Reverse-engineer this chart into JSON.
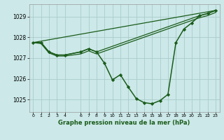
{
  "background_color": "#cce8e8",
  "grid_color": "#aacccc",
  "line_color": "#1a5c1a",
  "title": "Graphe pression niveau de la mer (hPa)",
  "xlim": [
    -0.5,
    23.5
  ],
  "ylim": [
    1024.4,
    1029.6
  ],
  "yticks": [
    1025,
    1026,
    1027,
    1028,
    1029
  ],
  "xticks": [
    0,
    1,
    2,
    3,
    4,
    6,
    7,
    8,
    9,
    10,
    11,
    12,
    13,
    14,
    15,
    16,
    17,
    18,
    19,
    20,
    21,
    22,
    23
  ],
  "series": [
    {
      "x": [
        0,
        1,
        2,
        3,
        4,
        6,
        7,
        8,
        9,
        10,
        11,
        12,
        13,
        14,
        15,
        16,
        17,
        18,
        19,
        20,
        21,
        22,
        23
      ],
      "y": [
        1027.75,
        1027.75,
        1027.3,
        1027.15,
        1027.15,
        1027.3,
        1027.45,
        1027.3,
        1026.75,
        1025.95,
        1026.2,
        1025.6,
        1025.05,
        1024.85,
        1024.8,
        1024.95,
        1025.25,
        1027.75,
        1028.4,
        1028.7,
        1029.05,
        1029.15,
        1029.3
      ],
      "marker": "D",
      "markersize": 2.2,
      "linewidth": 1.1
    },
    {
      "x": [
        0,
        23
      ],
      "y": [
        1027.75,
        1029.3
      ],
      "marker": null,
      "linewidth": 0.9
    },
    {
      "x": [
        0,
        1,
        2,
        3,
        4,
        6,
        7,
        8,
        21,
        22,
        23
      ],
      "y": [
        1027.75,
        1027.75,
        1027.3,
        1027.15,
        1027.15,
        1027.3,
        1027.45,
        1027.3,
        1029.05,
        1029.15,
        1029.3
      ],
      "marker": null,
      "linewidth": 0.9
    },
    {
      "x": [
        0,
        1,
        2,
        3,
        4,
        6,
        7,
        8,
        21,
        22,
        23
      ],
      "y": [
        1027.75,
        1027.7,
        1027.25,
        1027.1,
        1027.1,
        1027.2,
        1027.35,
        1027.2,
        1028.95,
        1029.05,
        1029.2
      ],
      "marker": null,
      "linewidth": 0.9
    }
  ]
}
